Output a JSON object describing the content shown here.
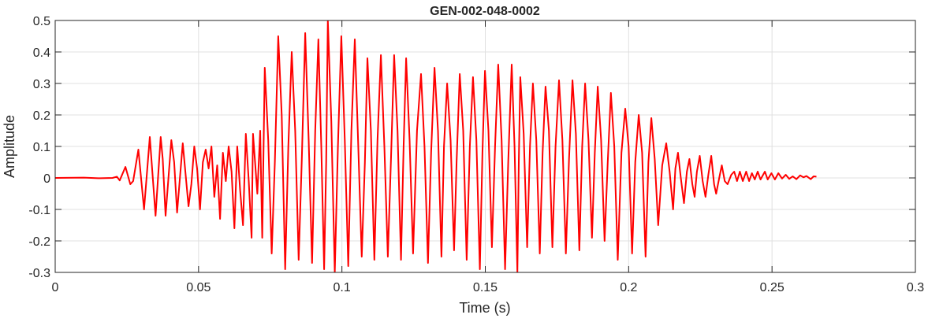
{
  "chart_data": {
    "type": "line",
    "title": "GEN-002-048-0002",
    "xlabel": "Time (s)",
    "ylabel": "Amplitude",
    "xlim": [
      0,
      0.3
    ],
    "ylim": [
      -0.3,
      0.5
    ],
    "xticks": [
      "0",
      "0.05",
      "0.1",
      "0.15",
      "0.2",
      "0.25",
      "0.3"
    ],
    "yticks": [
      "-0.3",
      "-0.2",
      "-0.1",
      "0",
      "0.1",
      "0.2",
      "0.3",
      "0.4",
      "0.5"
    ],
    "grid": true,
    "legend": "none",
    "series_color": "#ff0000",
    "points": [
      [
        0,
        0
      ],
      [
        0.01,
        0.001
      ],
      [
        0.015,
        -0.001
      ],
      [
        0.02,
        0
      ],
      [
        0.0215,
        0.004
      ],
      [
        0.0225,
        -0.008
      ],
      [
        0.0245,
        0.035
      ],
      [
        0.0262,
        -0.02
      ],
      [
        0.0272,
        -0.01
      ],
      [
        0.029,
        0.09
      ],
      [
        0.031,
        -0.1
      ],
      [
        0.033,
        0.13
      ],
      [
        0.035,
        -0.12
      ],
      [
        0.0368,
        0.13
      ],
      [
        0.0375,
        0.06
      ],
      [
        0.0385,
        -0.12
      ],
      [
        0.0405,
        0.12
      ],
      [
        0.0415,
        0.05
      ],
      [
        0.0425,
        -0.11
      ],
      [
        0.0445,
        0.11
      ],
      [
        0.0465,
        -0.09
      ],
      [
        0.0475,
        -0.02
      ],
      [
        0.0485,
        0.1
      ],
      [
        0.0495,
        0.03
      ],
      [
        0.0505,
        -0.1
      ],
      [
        0.0515,
        0.05
      ],
      [
        0.0525,
        0.09
      ],
      [
        0.0535,
        0.03
      ],
      [
        0.0545,
        0.1
      ],
      [
        0.0555,
        -0.06
      ],
      [
        0.0565,
        0.04
      ],
      [
        0.0575,
        -0.13
      ],
      [
        0.0585,
        0.08
      ],
      [
        0.0595,
        -0.01
      ],
      [
        0.0605,
        0.1
      ],
      [
        0.0615,
        0.02
      ],
      [
        0.0625,
        -0.16
      ],
      [
        0.0635,
        0.1
      ],
      [
        0.0645,
        -0.04
      ],
      [
        0.0655,
        -0.15
      ],
      [
        0.0665,
        0.14
      ],
      [
        0.0675,
        -0.01
      ],
      [
        0.0685,
        -0.19
      ],
      [
        0.069,
        0.14
      ],
      [
        0.0705,
        -0.05
      ],
      [
        0.0715,
        0.15
      ],
      [
        0.0722,
        -0.19
      ],
      [
        0.0731,
        0.35
      ],
      [
        0.0743,
        0.12
      ],
      [
        0.0755,
        -0.24
      ],
      [
        0.0766,
        0.05
      ],
      [
        0.0778,
        0.45
      ],
      [
        0.079,
        0.2
      ],
      [
        0.0802,
        -0.29
      ],
      [
        0.0813,
        0.1
      ],
      [
        0.0825,
        0.4
      ],
      [
        0.0837,
        0.15
      ],
      [
        0.0849,
        -0.26
      ],
      [
        0.086,
        0.06
      ],
      [
        0.0872,
        0.46
      ],
      [
        0.0884,
        0.12
      ],
      [
        0.0896,
        -0.27
      ],
      [
        0.0907,
        0.15
      ],
      [
        0.0918,
        0.44
      ],
      [
        0.0928,
        0.1
      ],
      [
        0.0938,
        -0.29
      ],
      [
        0.0945,
        0.05
      ],
      [
        0.0951,
        0.5
      ],
      [
        0.0963,
        0.18
      ],
      [
        0.0975,
        -0.3
      ],
      [
        0.0986,
        0.1
      ],
      [
        0.0998,
        0.45
      ],
      [
        0.101,
        0.12
      ],
      [
        0.1022,
        -0.28
      ],
      [
        0.1033,
        0.15
      ],
      [
        0.1045,
        0.44
      ],
      [
        0.1057,
        0.1
      ],
      [
        0.1069,
        -0.25
      ],
      [
        0.108,
        0.05
      ],
      [
        0.1089,
        0.38
      ],
      [
        0.1101,
        0.15
      ],
      [
        0.1113,
        -0.26
      ],
      [
        0.1124,
        0.12
      ],
      [
        0.1136,
        0.39
      ],
      [
        0.1148,
        0.1
      ],
      [
        0.116,
        -0.25
      ],
      [
        0.1171,
        0.06
      ],
      [
        0.1182,
        0.39
      ],
      [
        0.1194,
        0.15
      ],
      [
        0.1206,
        -0.26
      ],
      [
        0.1215,
        0.1
      ],
      [
        0.1224,
        0.38
      ],
      [
        0.1236,
        0.12
      ],
      [
        0.1248,
        -0.24
      ],
      [
        0.1262,
        0.15
      ],
      [
        0.1276,
        0.33
      ],
      [
        0.1288,
        0.1
      ],
      [
        0.13,
        -0.27
      ],
      [
        0.1311,
        0.08
      ],
      [
        0.1323,
        0.35
      ],
      [
        0.1335,
        0.15
      ],
      [
        0.1347,
        -0.25
      ],
      [
        0.1356,
        0.1
      ],
      [
        0.1367,
        0.3
      ],
      [
        0.1379,
        0.12
      ],
      [
        0.1391,
        -0.23
      ],
      [
        0.14,
        0.05
      ],
      [
        0.1411,
        0.33
      ],
      [
        0.1423,
        0.15
      ],
      [
        0.1435,
        -0.26
      ],
      [
        0.1446,
        0.1
      ],
      [
        0.1457,
        0.32
      ],
      [
        0.1469,
        0.12
      ],
      [
        0.1481,
        -0.29
      ],
      [
        0.149,
        0.08
      ],
      [
        0.1499,
        0.34
      ],
      [
        0.1511,
        0.15
      ],
      [
        0.1523,
        -0.22
      ],
      [
        0.1534,
        0.1
      ],
      [
        0.1545,
        0.36
      ],
      [
        0.1557,
        0.12
      ],
      [
        0.1569,
        -0.29
      ],
      [
        0.158,
        0.05
      ],
      [
        0.1592,
        0.36
      ],
      [
        0.1602,
        0.1
      ],
      [
        0.1612,
        -0.3
      ],
      [
        0.1617,
        0.05
      ],
      [
        0.1622,
        0.32
      ],
      [
        0.1634,
        0.14
      ],
      [
        0.1646,
        -0.22
      ],
      [
        0.1656,
        0.1
      ],
      [
        0.1666,
        0.3
      ],
      [
        0.1678,
        0.12
      ],
      [
        0.169,
        -0.24
      ],
      [
        0.17,
        0.08
      ],
      [
        0.171,
        0.29
      ],
      [
        0.1722,
        0.15
      ],
      [
        0.1734,
        -0.22
      ],
      [
        0.1745,
        0.1
      ],
      [
        0.1757,
        0.31
      ],
      [
        0.1769,
        0.12
      ],
      [
        0.1781,
        -0.24
      ],
      [
        0.1792,
        0.06
      ],
      [
        0.1804,
        0.31
      ],
      [
        0.1816,
        0.14
      ],
      [
        0.1828,
        -0.23
      ],
      [
        0.1838,
        0.1
      ],
      [
        0.1848,
        0.3
      ],
      [
        0.186,
        0.12
      ],
      [
        0.1872,
        -0.19
      ],
      [
        0.1882,
        0.08
      ],
      [
        0.1892,
        0.29
      ],
      [
        0.1904,
        0.12
      ],
      [
        0.1916,
        -0.2
      ],
      [
        0.1927,
        0.05
      ],
      [
        0.1938,
        0.27
      ],
      [
        0.195,
        0.1
      ],
      [
        0.1962,
        -0.26
      ],
      [
        0.1975,
        0.08
      ],
      [
        0.1988,
        0.22
      ],
      [
        0.2,
        0.1
      ],
      [
        0.2012,
        -0.24
      ],
      [
        0.2023,
        0.05
      ],
      [
        0.2035,
        0.2
      ],
      [
        0.2047,
        0.08
      ],
      [
        0.2059,
        -0.25
      ],
      [
        0.2069,
        0.05
      ],
      [
        0.2079,
        0.19
      ],
      [
        0.2091,
        0.06
      ],
      [
        0.2103,
        -0.15
      ],
      [
        0.2117,
        0.04
      ],
      [
        0.2131,
        0.11
      ],
      [
        0.2143,
        0.02
      ],
      [
        0.2155,
        -0.1
      ],
      [
        0.2163,
        0.03
      ],
      [
        0.2172,
        0.08
      ],
      [
        0.2182,
        0.0
      ],
      [
        0.2193,
        -0.08
      ],
      [
        0.2203,
        0.02
      ],
      [
        0.2212,
        0.06
      ],
      [
        0.2222,
        -0.02
      ],
      [
        0.223,
        -0.06
      ],
      [
        0.2238,
        0.02
      ],
      [
        0.2248,
        0.07
      ],
      [
        0.2258,
        -0.01
      ],
      [
        0.2268,
        -0.06
      ],
      [
        0.2278,
        0.01
      ],
      [
        0.2288,
        0.07
      ],
      [
        0.2298,
        -0.02
      ],
      [
        0.2305,
        -0.05
      ],
      [
        0.2318,
        0.01
      ],
      [
        0.2325,
        0.04
      ],
      [
        0.2335,
        -0.01
      ],
      [
        0.2345,
        -0.02
      ],
      [
        0.2358,
        0.01
      ],
      [
        0.2368,
        0.02
      ],
      [
        0.2378,
        -0.01
      ],
      [
        0.2388,
        0.02
      ],
      [
        0.2398,
        -0.01
      ],
      [
        0.241,
        0.02
      ],
      [
        0.242,
        -0.01
      ],
      [
        0.243,
        0.015
      ],
      [
        0.244,
        -0.005
      ],
      [
        0.245,
        0.02
      ],
      [
        0.246,
        -0.005
      ],
      [
        0.2475,
        0.02
      ],
      [
        0.2485,
        -0.005
      ],
      [
        0.2498,
        0.015
      ],
      [
        0.251,
        -0.005
      ],
      [
        0.2522,
        0.015
      ],
      [
        0.2535,
        -0.002
      ],
      [
        0.2548,
        0.01
      ],
      [
        0.256,
        -0.003
      ],
      [
        0.2572,
        0.005
      ],
      [
        0.2585,
        -0.004
      ],
      [
        0.2598,
        0.008
      ],
      [
        0.261,
        0.002
      ],
      [
        0.262,
        0.006
      ],
      [
        0.2635,
        -0.004
      ],
      [
        0.2645,
        0.005
      ],
      [
        0.2655,
        0.004
      ]
    ]
  }
}
